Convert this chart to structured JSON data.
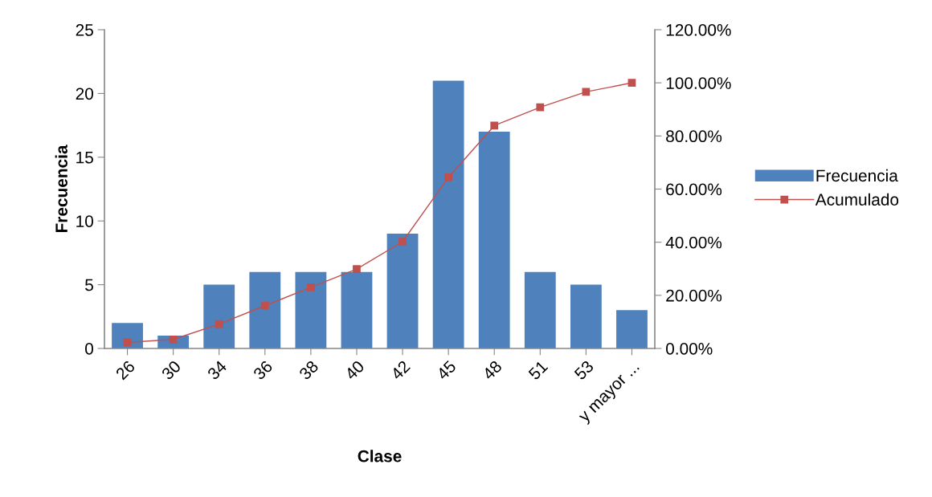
{
  "chart_data": {
    "type": "bar",
    "xlabel": "Clase",
    "ylabel": "Frecuencia",
    "categories": [
      "26",
      "30",
      "34",
      "36",
      "38",
      "40",
      "42",
      "45",
      "48",
      "51",
      "53",
      "y mayor ..."
    ],
    "series": [
      {
        "name": "Frecuencia",
        "color": "#4f81bd",
        "values": [
          2,
          1,
          5,
          6,
          6,
          6,
          9,
          21,
          17,
          6,
          5,
          3
        ]
      },
      {
        "name": "Acumulado",
        "type": "line",
        "axis": "y2",
        "color": "#c0504d",
        "marker": "square",
        "values": [
          2.3,
          3.4,
          9.2,
          16.1,
          23.0,
          29.9,
          40.2,
          64.4,
          83.9,
          90.8,
          96.6,
          100
        ]
      }
    ],
    "ylim": [
      0,
      25
    ],
    "yticks": [
      0,
      5,
      10,
      15,
      20,
      25
    ],
    "y2lim": [
      0,
      120
    ],
    "y2ticks": [
      {
        "value": 0,
        "label": "0.00%"
      },
      {
        "value": 20,
        "label": "20.00%"
      },
      {
        "value": 40,
        "label": "40.00%"
      },
      {
        "value": 60,
        "label": "60.00%"
      },
      {
        "value": 80,
        "label": "80.00%"
      },
      {
        "value": 100,
        "label": "100.00%"
      },
      {
        "value": 120,
        "label": "120.00%"
      }
    ],
    "grid": false,
    "legend": "right"
  }
}
